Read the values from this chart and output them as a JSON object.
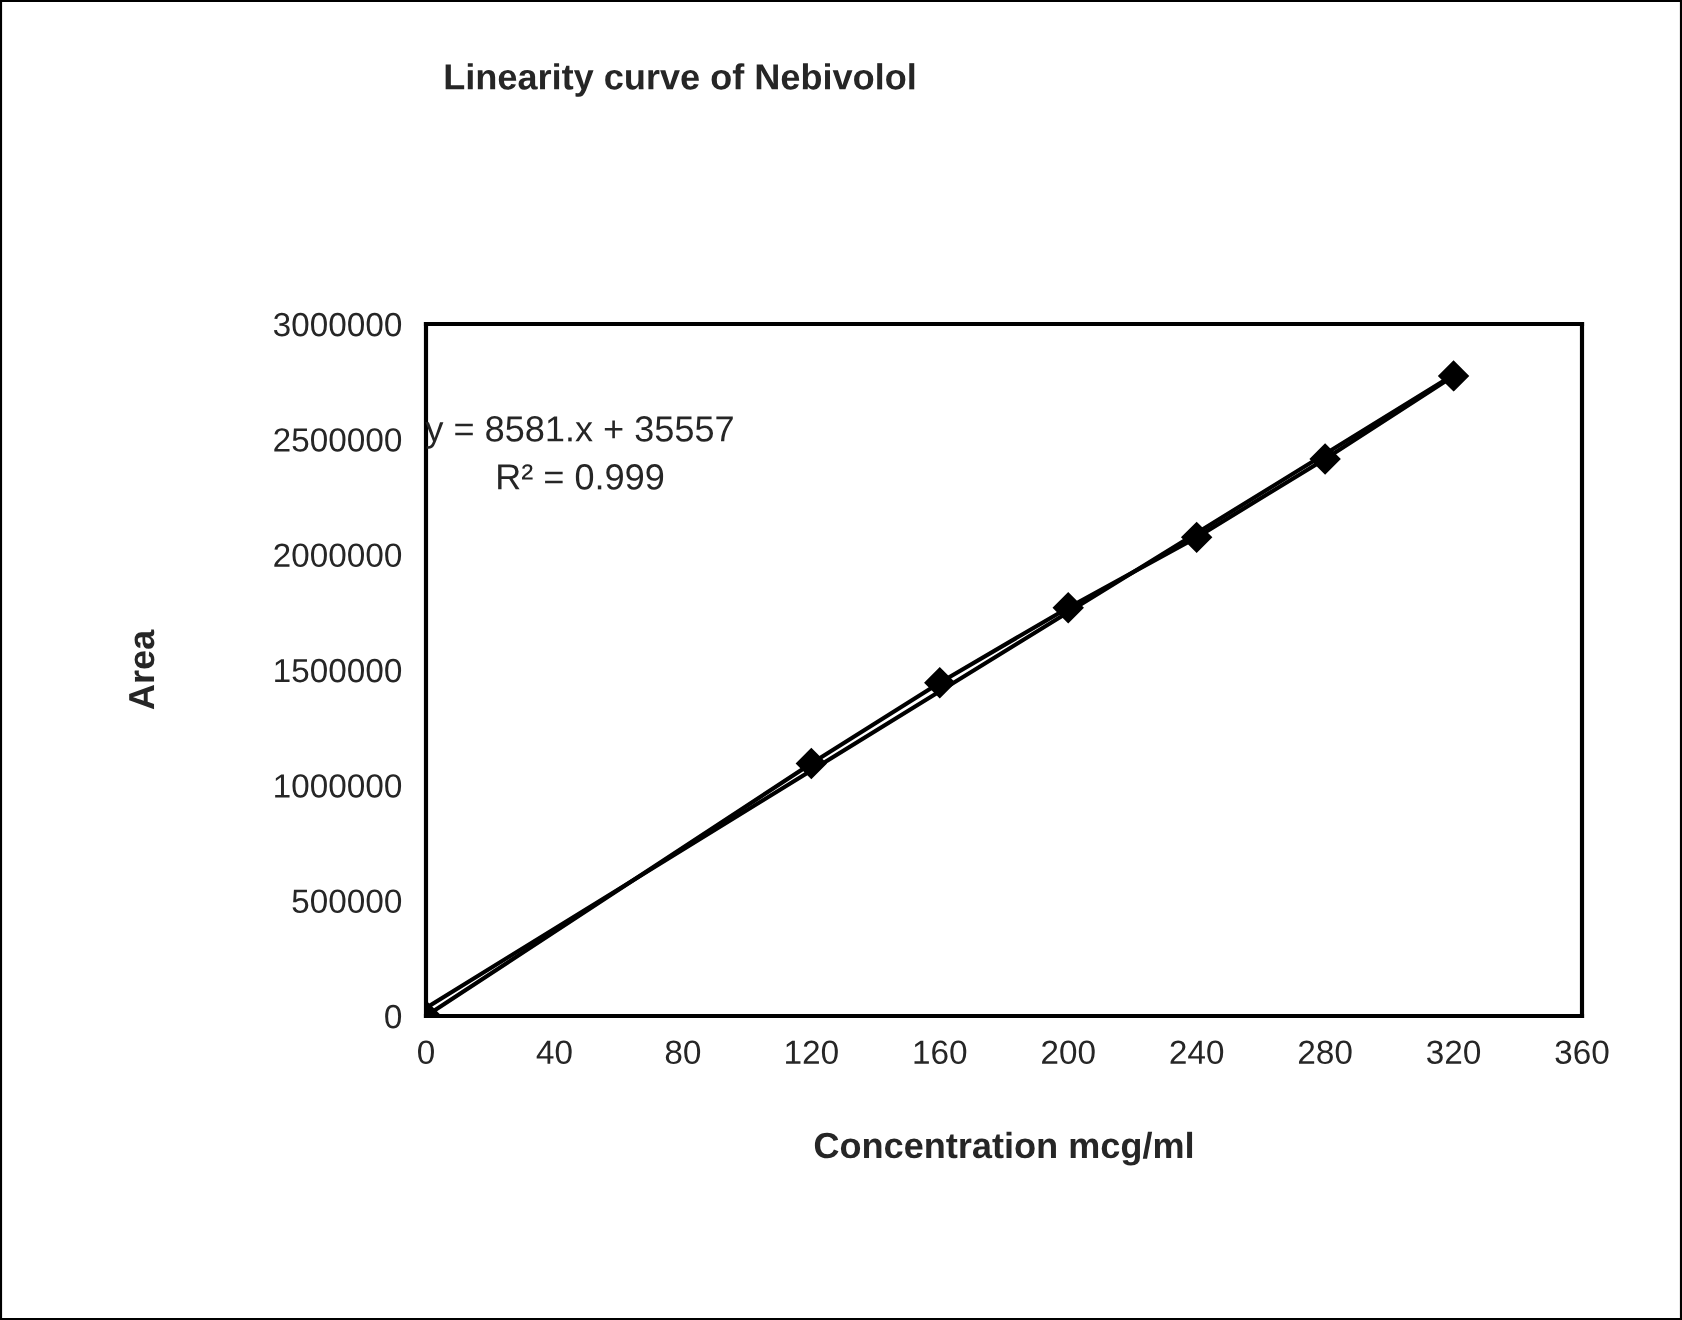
{
  "chart_data": {
    "type": "line",
    "title": "Linearity curve of Nebivolol",
    "xlabel": "Concentration mcg/ml",
    "ylabel": "Area",
    "series": [
      {
        "color": "#000000",
        "marker": "diamond",
        "x": [
          0,
          120,
          160,
          200,
          240,
          280,
          320
        ],
        "values": [
          0,
          1095000,
          1445000,
          1770000,
          2075000,
          2415000,
          2775000
        ]
      },
      {
        "color": "#000000",
        "marker": "none",
        "x": [
          0,
          320
        ],
        "values": [
          35000,
          2780000
        ]
      }
    ],
    "annotations": [
      "y = 8581.x + 35557",
      "R² = 0.999"
    ],
    "xlim": [
      0,
      360
    ],
    "xticks": [
      0,
      40,
      80,
      120,
      160,
      200,
      240,
      280,
      320,
      360
    ],
    "ylim": [
      0,
      3000000
    ],
    "yticks": [
      0,
      500000,
      1000000,
      1500000,
      2000000,
      2500000,
      3000000
    ],
    "grid": false,
    "legend": false
  }
}
